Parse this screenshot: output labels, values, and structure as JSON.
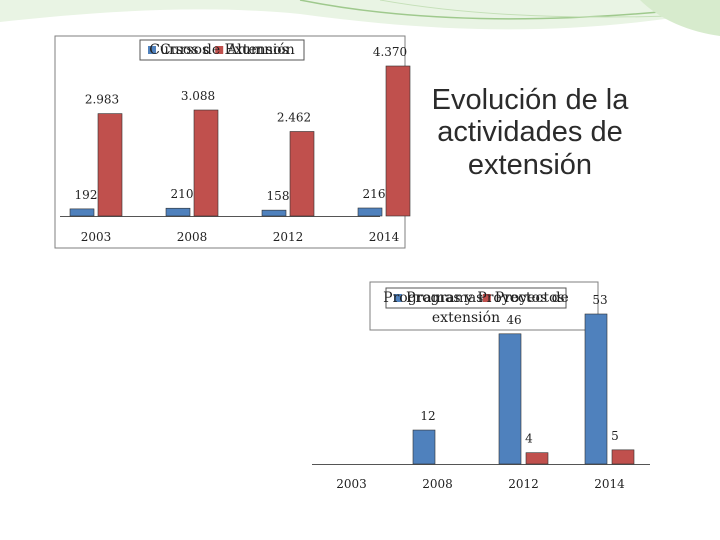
{
  "slide": {
    "title": "Evolución de la actividades de extensión"
  },
  "colors": {
    "series_a": "#4f81bd",
    "series_b": "#c0504d",
    "decor": "#b6d7a8"
  },
  "chart_data": [
    {
      "type": "bar",
      "title": "Cursos de Extensión",
      "categories": [
        "2003",
        "2008",
        "2012",
        "2014"
      ],
      "series": [
        {
          "name": "Cursos",
          "color": "#4f81bd",
          "values": [
            192,
            210,
            158,
            216
          ],
          "labels": [
            "192",
            "210",
            "158",
            "216"
          ]
        },
        {
          "name": "Alumnos",
          "color": "#c0504d",
          "values": [
            2983,
            3088,
            2462,
            4370
          ],
          "labels": [
            "2.983",
            "3.088",
            "2.462",
            "4.370"
          ]
        }
      ],
      "xlabel": "",
      "ylabel": "",
      "legend": "top",
      "grid": false
    },
    {
      "type": "bar",
      "title": "Programas y Proyectos de extensión",
      "categories": [
        "2003",
        "2008",
        "2012",
        "2014"
      ],
      "series": [
        {
          "name": "Programas",
          "color": "#4f81bd",
          "values": [
            0,
            12,
            46,
            53
          ],
          "labels": [
            "",
            "12",
            "46",
            "53"
          ]
        },
        {
          "name": "Proyectos",
          "color": "#c0504d",
          "values": [
            0,
            0,
            4,
            5
          ],
          "labels": [
            "",
            "",
            "4",
            "5"
          ]
        }
      ],
      "xlabel": "",
      "ylabel": "",
      "legend": "top",
      "grid": false
    }
  ]
}
